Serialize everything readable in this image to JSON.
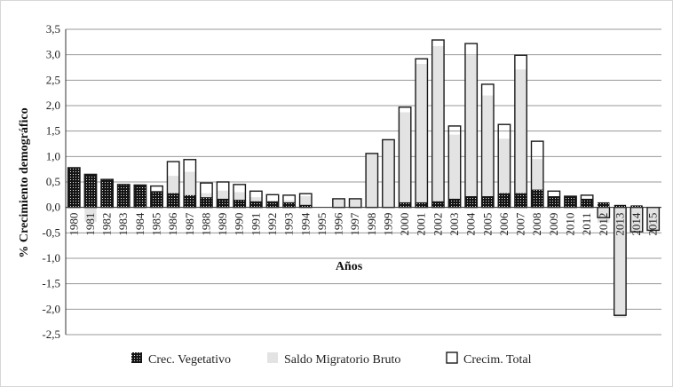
{
  "chart_data": {
    "type": "bar",
    "ylabel": "% Crecimiento demográfico",
    "xlabel": "Años",
    "ylim": [
      -2.5,
      3.5
    ],
    "yticks": [
      "-2,5",
      "-2,0",
      "-1,5",
      "-1,0",
      "-0,5",
      "0,0",
      "0,5",
      "1,0",
      "1,5",
      "2,0",
      "2,5",
      "3,0",
      "3,5"
    ],
    "grid": true,
    "legend_position": "bottom",
    "categories": [
      "1980",
      "1981",
      "1982",
      "1983",
      "1984",
      "1985",
      "1986",
      "1987",
      "1988",
      "1989",
      "1990",
      "1991",
      "1992",
      "1993",
      "1994",
      "1995",
      "1996",
      "1997",
      "1998",
      "1999",
      "2000",
      "2001",
      "2002",
      "2003",
      "2004",
      "2005",
      "2006",
      "2007",
      "2008",
      "2009",
      "2010",
      "2011",
      "2012",
      "2013",
      "2014",
      "2015"
    ],
    "series": [
      {
        "name": "Crec. Vegetativo",
        "pattern": "dotted-dark",
        "values": [
          0.78,
          0.65,
          0.55,
          0.45,
          0.44,
          0.32,
          0.28,
          0.24,
          0.2,
          0.17,
          0.15,
          0.12,
          0.12,
          0.1,
          0.05,
          0.0,
          0.0,
          0.0,
          0.0,
          0.0,
          0.1,
          0.1,
          0.12,
          0.17,
          0.22,
          0.22,
          0.28,
          0.28,
          0.35,
          0.22,
          0.22,
          0.17,
          0.1,
          0.05,
          0.04,
          0.0
        ]
      },
      {
        "name": "Saldo Migratorio Bruto",
        "pattern": "light-gray",
        "values": [
          0.0,
          -0.28,
          0.0,
          0.0,
          0.0,
          0.1,
          0.62,
          0.7,
          0.28,
          0.33,
          0.3,
          0.2,
          0.13,
          0.14,
          0.22,
          0.0,
          0.17,
          0.17,
          1.06,
          1.33,
          1.87,
          2.82,
          3.17,
          1.43,
          3.0,
          2.2,
          1.35,
          2.71,
          0.95,
          0.1,
          0.0,
          0.07,
          -0.3,
          -2.17,
          -0.52,
          -0.45
        ]
      },
      {
        "name": "Crecim. Total",
        "pattern": "outline",
        "values": [
          0.78,
          0.65,
          0.55,
          0.45,
          0.44,
          0.42,
          0.9,
          0.94,
          0.48,
          0.5,
          0.45,
          0.32,
          0.25,
          0.24,
          0.27,
          0.0,
          0.17,
          0.17,
          1.06,
          1.33,
          1.97,
          2.92,
          3.29,
          1.6,
          3.22,
          2.42,
          1.63,
          2.99,
          1.3,
          0.32,
          0.22,
          0.24,
          -0.2,
          -2.12,
          -0.48,
          -0.45
        ]
      }
    ]
  }
}
